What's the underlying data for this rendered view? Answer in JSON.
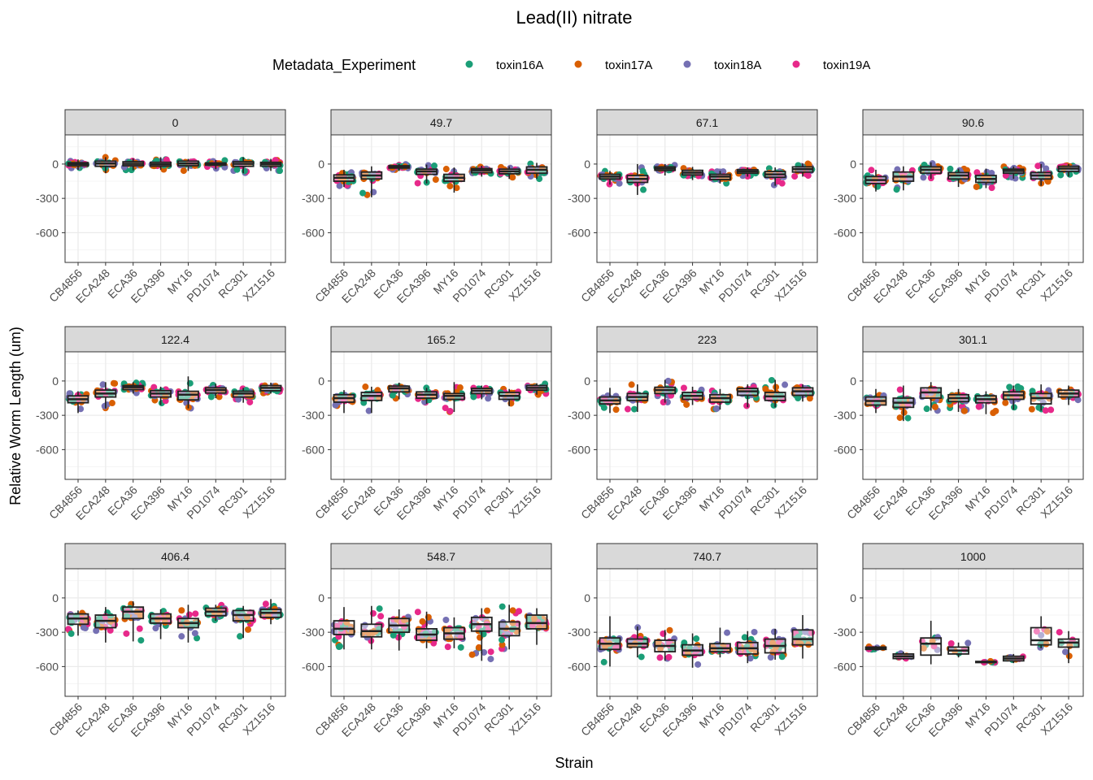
{
  "chart_data": {
    "type": "box",
    "title": "Lead(II) nitrate",
    "xlabel": "Strain",
    "ylabel": "Relative Worm Length (um)",
    "ylim": [
      -860,
      255
    ],
    "yticks": [
      "0",
      "-300",
      "-600"
    ],
    "ytick_values": [
      0,
      -300,
      -600
    ],
    "grid": true,
    "legend": {
      "title": "Metadata_Experiment",
      "position": "top",
      "entries": [
        {
          "label": "toxin16A",
          "color": "#1B9E77"
        },
        {
          "label": "toxin17A",
          "color": "#D95F02"
        },
        {
          "label": "toxin18A",
          "color": "#7570B3"
        },
        {
          "label": "toxin19A",
          "color": "#E7298A"
        }
      ]
    },
    "categories": [
      "CB4856",
      "ECA248",
      "ECA36",
      "ECA396",
      "MY16",
      "PD1074",
      "RC301",
      "XZ1516"
    ],
    "box_stat_order": [
      "min",
      "q1",
      "median",
      "q3",
      "max"
    ],
    "facets": [
      {
        "label": "0",
        "boxes": [
          [
            -50,
            -15,
            0,
            12,
            40
          ],
          [
            -80,
            -20,
            5,
            25,
            60
          ],
          [
            -55,
            -15,
            2,
            20,
            50
          ],
          [
            -50,
            -18,
            -2,
            15,
            60
          ],
          [
            -60,
            -15,
            5,
            25,
            45
          ],
          [
            -45,
            -10,
            0,
            10,
            35
          ],
          [
            -80,
            -20,
            2,
            20,
            60
          ],
          [
            -60,
            -18,
            0,
            15,
            45
          ]
        ]
      },
      {
        "label": "49.7",
        "boxes": [
          [
            -200,
            -150,
            -120,
            -95,
            -50
          ],
          [
            -290,
            -130,
            -100,
            -70,
            -20
          ],
          [
            -60,
            -35,
            -25,
            -15,
            0
          ],
          [
            -170,
            -90,
            -65,
            -45,
            -5
          ],
          [
            -250,
            -150,
            -120,
            -90,
            -30
          ],
          [
            -110,
            -75,
            -55,
            -40,
            -15
          ],
          [
            -130,
            -85,
            -65,
            -45,
            -20
          ],
          [
            -130,
            -80,
            -50,
            -25,
            10
          ]
        ]
      },
      {
        "label": "67.1",
        "boxes": [
          [
            -180,
            -130,
            -110,
            -90,
            -60
          ],
          [
            -270,
            -160,
            -130,
            -100,
            0
          ],
          [
            -100,
            -55,
            -40,
            -25,
            0
          ],
          [
            -140,
            -95,
            -75,
            -55,
            -25
          ],
          [
            -170,
            -135,
            -110,
            -90,
            -60
          ],
          [
            -110,
            -80,
            -65,
            -50,
            -30
          ],
          [
            -190,
            -115,
            -90,
            -65,
            -30
          ],
          [
            -110,
            -70,
            -45,
            -25,
            5
          ]
        ]
      },
      {
        "label": "90.6",
        "boxes": [
          [
            -240,
            -170,
            -140,
            -110,
            -50
          ],
          [
            -230,
            -150,
            -110,
            -70,
            -20
          ],
          [
            -130,
            -80,
            -50,
            -25,
            15
          ],
          [
            -200,
            -130,
            -100,
            -75,
            -40
          ],
          [
            -210,
            -160,
            -130,
            -100,
            -40
          ],
          [
            -130,
            -80,
            -60,
            -45,
            -20
          ],
          [
            -190,
            -130,
            -100,
            -75,
            0
          ],
          [
            -110,
            -65,
            -40,
            -20,
            0
          ]
        ]
      },
      {
        "label": "122.4",
        "boxes": [
          [
            -280,
            -190,
            -160,
            -130,
            -90
          ],
          [
            -240,
            -140,
            -110,
            -80,
            -10
          ],
          [
            -110,
            -75,
            -55,
            -40,
            -10
          ],
          [
            -210,
            -140,
            -110,
            -85,
            -50
          ],
          [
            -240,
            -165,
            -120,
            -90,
            40
          ],
          [
            -150,
            -105,
            -80,
            -60,
            -25
          ],
          [
            -190,
            -140,
            -110,
            -90,
            -60
          ],
          [
            -110,
            -85,
            -60,
            -40,
            -15
          ]
        ]
      },
      {
        "label": "165.2",
        "boxes": [
          [
            -280,
            -185,
            -150,
            -120,
            -80
          ],
          [
            -280,
            -170,
            -130,
            -100,
            -50
          ],
          [
            -160,
            -95,
            -65,
            -45,
            -15
          ],
          [
            -200,
            -150,
            -120,
            -95,
            -60
          ],
          [
            -270,
            -160,
            -130,
            -110,
            -10
          ],
          [
            -160,
            -110,
            -85,
            -65,
            -40
          ],
          [
            -220,
            -160,
            -130,
            -100,
            -70
          ],
          [
            -120,
            -80,
            -60,
            -40,
            -20
          ]
        ]
      },
      {
        "label": "223",
        "boxes": [
          [
            -280,
            -200,
            -170,
            -140,
            -60
          ],
          [
            -270,
            -170,
            -140,
            -110,
            -30
          ],
          [
            -190,
            -110,
            -80,
            -55,
            10
          ],
          [
            -210,
            -160,
            -130,
            -100,
            -50
          ],
          [
            -250,
            -185,
            -150,
            -120,
            -70
          ],
          [
            -230,
            -125,
            -90,
            -65,
            -30
          ],
          [
            -230,
            -170,
            -135,
            -100,
            10
          ],
          [
            -180,
            -125,
            -90,
            -60,
            -30
          ]
        ]
      },
      {
        "label": "301.1",
        "boxes": [
          [
            -280,
            -210,
            -175,
            -140,
            -70
          ],
          [
            -350,
            -230,
            -190,
            -150,
            -40
          ],
          [
            -260,
            -150,
            -100,
            -60,
            -10
          ],
          [
            -270,
            -180,
            -150,
            -120,
            -70
          ],
          [
            -290,
            -190,
            -160,
            -130,
            -90
          ],
          [
            -250,
            -160,
            -125,
            -95,
            -40
          ],
          [
            -260,
            -200,
            -150,
            -110,
            -30
          ],
          [
            -210,
            -140,
            -110,
            -80,
            -40
          ]
        ]
      },
      {
        "label": "406.4",
        "boxes": [
          [
            -330,
            -230,
            -180,
            -140,
            -110
          ],
          [
            -390,
            -260,
            -200,
            -150,
            -80
          ],
          [
            -380,
            -180,
            -120,
            -80,
            -30
          ],
          [
            -360,
            -220,
            -180,
            -140,
            -100
          ],
          [
            -390,
            -260,
            -220,
            -180,
            -60
          ],
          [
            -200,
            -155,
            -120,
            -90,
            -60
          ],
          [
            -350,
            -200,
            -150,
            -110,
            -70
          ],
          [
            -230,
            -170,
            -130,
            -100,
            -10
          ]
        ]
      },
      {
        "label": "548.7",
        "boxes": [
          [
            -450,
            -320,
            -270,
            -200,
            -80
          ],
          [
            -450,
            -340,
            -290,
            -230,
            -70
          ],
          [
            -460,
            -300,
            -240,
            -180,
            -100
          ],
          [
            -440,
            -370,
            -320,
            -270,
            -120
          ],
          [
            -440,
            -360,
            -310,
            -260,
            -170
          ],
          [
            -550,
            -290,
            -230,
            -170,
            -90
          ],
          [
            -450,
            -330,
            -270,
            -210,
            -60
          ],
          [
            -410,
            -270,
            -220,
            -150,
            -90
          ]
        ]
      },
      {
        "label": "740.7",
        "boxes": [
          [
            -600,
            -450,
            -400,
            -350,
            -160
          ],
          [
            -520,
            -430,
            -400,
            -360,
            -250
          ],
          [
            -550,
            -470,
            -420,
            -370,
            -280
          ],
          [
            -610,
            -500,
            -460,
            -410,
            -310
          ],
          [
            -520,
            -470,
            -440,
            -400,
            -260
          ],
          [
            -570,
            -490,
            -440,
            -390,
            -290
          ],
          [
            -540,
            -480,
            -420,
            -360,
            -270
          ],
          [
            -530,
            -410,
            -360,
            -280,
            -150
          ]
        ]
      },
      {
        "label": "1000",
        "boxes": [
          [
            -460,
            -450,
            -440,
            -430,
            -420
          ],
          [
            -540,
            -530,
            -510,
            -490,
            -470
          ],
          [
            -580,
            -500,
            -400,
            -350,
            -200
          ],
          [
            -520,
            -490,
            -460,
            -430,
            -390
          ],
          [
            -565,
            -565,
            -560,
            -555,
            -550
          ],
          [
            -570,
            -550,
            -530,
            -510,
            -490
          ],
          [
            -440,
            -410,
            -370,
            -260,
            -160
          ],
          [
            -570,
            -430,
            -390,
            -360,
            -290
          ]
        ]
      }
    ]
  }
}
